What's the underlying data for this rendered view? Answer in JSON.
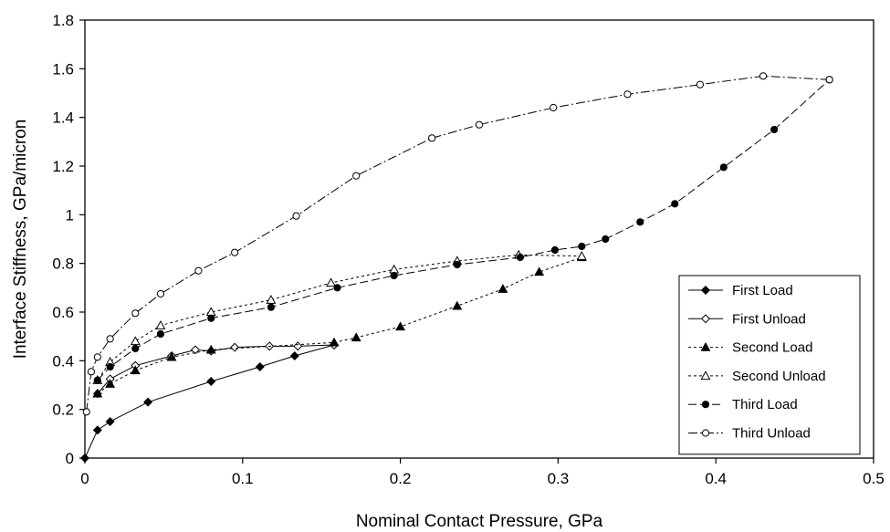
{
  "chart_data": {
    "type": "line",
    "xlabel": "Nominal Contact Pressure, GPa",
    "ylabel": "Interface Stiffness, GPa/micron",
    "xlim": [
      0,
      0.5
    ],
    "ylim": [
      0,
      1.8
    ],
    "xticks": [
      0,
      0.1,
      0.2,
      0.3,
      0.4,
      0.5
    ],
    "xtick_labels": [
      "0",
      "0.1",
      "0.2",
      "0.3",
      "0.4",
      "0.5"
    ],
    "yticks": [
      0,
      0.2,
      0.4,
      0.6,
      0.8,
      1,
      1.2,
      1.4,
      1.6,
      1.8
    ],
    "ytick_labels": [
      "0",
      "0.2",
      "0.4",
      "0.6",
      "0.8",
      "1",
      "1.2",
      "1.4",
      "1.6",
      "1.8"
    ],
    "grid": false,
    "legend_position": "bottom-right",
    "series": [
      {
        "name": "First Load",
        "marker": "diamond-filled",
        "dash": "solid",
        "x": [
          0,
          0.008,
          0.016,
          0.04,
          0.08,
          0.111,
          0.133,
          0.158
        ],
        "y": [
          0,
          0.115,
          0.15,
          0.23,
          0.315,
          0.375,
          0.42,
          0.465
        ]
      },
      {
        "name": "First Unload",
        "marker": "diamond-open",
        "dash": "solid",
        "x": [
          0.158,
          0.135,
          0.117,
          0.095,
          0.08,
          0.07,
          0.055,
          0.032,
          0.016,
          0.008
        ],
        "y": [
          0.465,
          0.46,
          0.46,
          0.455,
          0.44,
          0.445,
          0.42,
          0.38,
          0.325,
          0.265
        ]
      },
      {
        "name": "Second Load",
        "marker": "triangle-filled",
        "dash": "dot",
        "x": [
          0.008,
          0.016,
          0.032,
          0.055,
          0.08,
          0.158,
          0.172,
          0.2,
          0.236,
          0.265,
          0.288,
          0.315
        ],
        "y": [
          0.265,
          0.305,
          0.36,
          0.415,
          0.445,
          0.475,
          0.495,
          0.54,
          0.625,
          0.695,
          0.765,
          0.825
        ]
      },
      {
        "name": "Second Unload",
        "marker": "triangle-open",
        "dash": "dot",
        "x": [
          0.315,
          0.275,
          0.236,
          0.196,
          0.156,
          0.118,
          0.08,
          0.048,
          0.032,
          0.016,
          0.008
        ],
        "y": [
          0.83,
          0.835,
          0.81,
          0.775,
          0.72,
          0.65,
          0.6,
          0.545,
          0.48,
          0.395,
          0.32
        ]
      },
      {
        "name": "Third Load",
        "marker": "circle-filled",
        "dash": "dash",
        "x": [
          0.008,
          0.016,
          0.032,
          0.048,
          0.08,
          0.118,
          0.16,
          0.196,
          0.236,
          0.276,
          0.298,
          0.315,
          0.33,
          0.352,
          0.374,
          0.405,
          0.437,
          0.472
        ],
        "y": [
          0.32,
          0.375,
          0.45,
          0.51,
          0.575,
          0.62,
          0.7,
          0.75,
          0.795,
          0.825,
          0.855,
          0.87,
          0.9,
          0.97,
          1.045,
          1.195,
          1.35,
          1.555
        ]
      },
      {
        "name": "Third Unload",
        "marker": "circle-open",
        "dash": "dashdot",
        "x": [
          0.472,
          0.43,
          0.39,
          0.344,
          0.297,
          0.25,
          0.22,
          0.172,
          0.134,
          0.095,
          0.072,
          0.048,
          0.032,
          0.016,
          0.008,
          0.004,
          0.001
        ],
        "y": [
          1.555,
          1.57,
          1.535,
          1.495,
          1.44,
          1.37,
          1.315,
          1.16,
          0.995,
          0.845,
          0.77,
          0.675,
          0.595,
          0.49,
          0.415,
          0.355,
          0.19
        ]
      }
    ]
  }
}
